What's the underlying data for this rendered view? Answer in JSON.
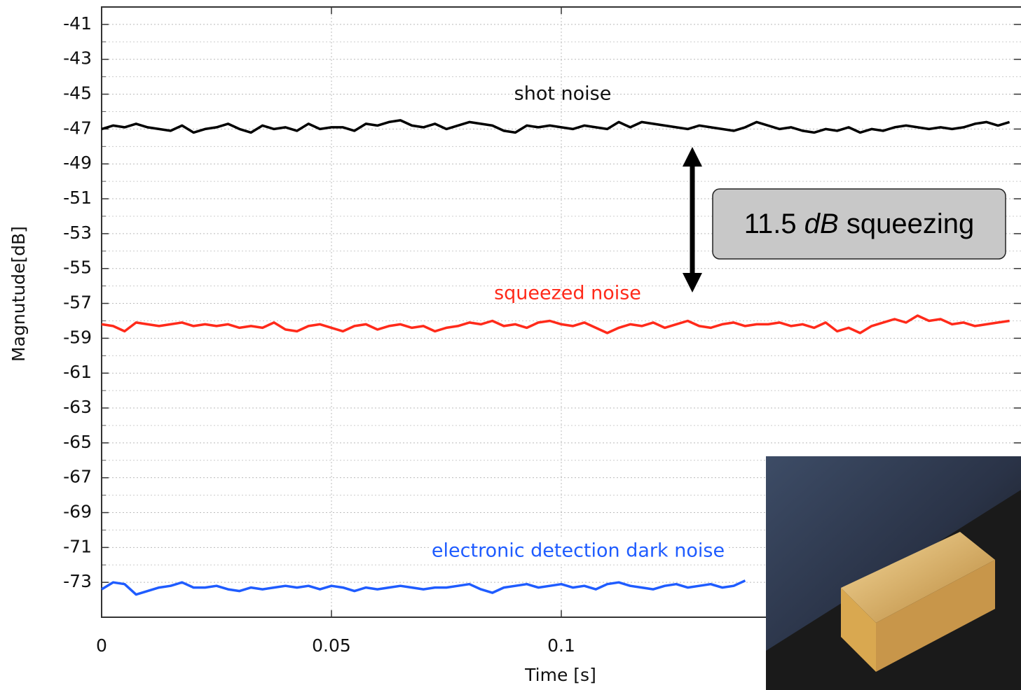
{
  "chart_data": {
    "type": "line",
    "x_label": "Time [s]",
    "y_label": "Magnutude[dB]",
    "x": [
      0,
      0.0025,
      0.005,
      0.0075,
      0.01,
      0.0125,
      0.015,
      0.0175,
      0.02,
      0.0225,
      0.025,
      0.0275,
      0.03,
      0.0325,
      0.035,
      0.0375,
      0.04,
      0.0425,
      0.045,
      0.0475,
      0.05,
      0.0525,
      0.055,
      0.0575,
      0.06,
      0.0625,
      0.065,
      0.0675,
      0.07,
      0.0725,
      0.075,
      0.0775,
      0.08,
      0.0825,
      0.085,
      0.0875,
      0.09,
      0.0925,
      0.095,
      0.0975,
      0.1,
      0.1025,
      0.105,
      0.1075,
      0.11,
      0.1125,
      0.115,
      0.1175,
      0.12,
      0.1225,
      0.125,
      0.1275,
      0.13,
      0.1325,
      0.135,
      0.1375,
      0.14,
      0.1425,
      0.145,
      0.1475,
      0.15,
      0.1525,
      0.155,
      0.1575,
      0.16,
      0.1625,
      0.165,
      0.1675,
      0.17,
      0.1725,
      0.175,
      0.1775,
      0.18,
      0.1825,
      0.185,
      0.1875,
      0.19,
      0.1925,
      0.195,
      0.1975
    ],
    "series": [
      {
        "name": "shot noise",
        "color": "#000000",
        "values": [
          -47,
          -46.8,
          -46.9,
          -46.7,
          -46.9,
          -47,
          -47.1,
          -46.8,
          -47.2,
          -47,
          -46.9,
          -46.7,
          -47,
          -47.2,
          -46.8,
          -47,
          -46.9,
          -47.1,
          -46.7,
          -47,
          -46.9,
          -46.9,
          -47.1,
          -46.7,
          -46.8,
          -46.6,
          -46.5,
          -46.8,
          -46.9,
          -46.7,
          -47,
          -46.8,
          -46.6,
          -46.7,
          -46.8,
          -47.1,
          -47.2,
          -46.8,
          -46.9,
          -46.8,
          -46.9,
          -47,
          -46.8,
          -46.9,
          -47,
          -46.6,
          -46.9,
          -46.6,
          -46.7,
          -46.8,
          -46.9,
          -47,
          -46.8,
          -46.9,
          -47,
          -47.1,
          -46.9,
          -46.6,
          -46.8,
          -47,
          -46.9,
          -47.1,
          -47.2,
          -47,
          -47.1,
          -46.9,
          -47.2,
          -47,
          -47.1,
          -46.9,
          -46.8,
          -46.9,
          -47,
          -46.9,
          -47,
          -46.9,
          -46.7,
          -46.6,
          -46.8,
          -46.6
        ]
      },
      {
        "name": "squeezed noise",
        "color": "#ff2a1a",
        "values": [
          -58.2,
          -58.3,
          -58.6,
          -58.1,
          -58.2,
          -58.3,
          -58.2,
          -58.1,
          -58.3,
          -58.2,
          -58.3,
          -58.2,
          -58.4,
          -58.3,
          -58.4,
          -58.1,
          -58.5,
          -58.6,
          -58.3,
          -58.2,
          -58.4,
          -58.6,
          -58.3,
          -58.2,
          -58.5,
          -58.3,
          -58.2,
          -58.4,
          -58.3,
          -58.6,
          -58.4,
          -58.3,
          -58.1,
          -58.2,
          -58,
          -58.3,
          -58.2,
          -58.4,
          -58.1,
          -58,
          -58.2,
          -58.3,
          -58.1,
          -58.4,
          -58.7,
          -58.4,
          -58.2,
          -58.3,
          -58.1,
          -58.4,
          -58.2,
          -58,
          -58.3,
          -58.4,
          -58.2,
          -58.1,
          -58.3,
          -58.2,
          -58.2,
          -58.1,
          -58.3,
          -58.2,
          -58.4,
          -58.1,
          -58.6,
          -58.4,
          -58.7,
          -58.3,
          -58.1,
          -57.9,
          -58.1,
          -57.7,
          -58,
          -57.9,
          -58.2,
          -58.1,
          -58.3,
          -58.2,
          -58.1,
          -58
        ]
      },
      {
        "name": "electronic detection dark noise",
        "color": "#1f5cff",
        "values": [
          -73.4,
          -73,
          -73.1,
          -73.7,
          -73.5,
          -73.3,
          -73.2,
          -73,
          -73.3,
          -73.3,
          -73.2,
          -73.4,
          -73.5,
          -73.3,
          -73.4,
          -73.3,
          -73.2,
          -73.3,
          -73.2,
          -73.4,
          -73.2,
          -73.3,
          -73.5,
          -73.3,
          -73.4,
          -73.3,
          -73.2,
          -73.3,
          -73.4,
          -73.3,
          -73.3,
          -73.2,
          -73.1,
          -73.4,
          -73.6,
          -73.3,
          -73.2,
          -73.1,
          -73.3,
          -73.2,
          -73.1,
          -73.3,
          -73.2,
          -73.4,
          -73.1,
          -73,
          -73.2,
          -73.3,
          -73.4,
          -73.2,
          -73.1,
          -73.3,
          -73.2,
          -73.1,
          -73.3,
          -73.2,
          -72.9,
          null,
          null,
          null,
          null,
          null,
          null,
          null,
          null,
          null,
          null,
          null,
          null,
          null,
          null,
          null,
          null,
          null,
          null,
          null,
          null,
          null,
          null,
          null
        ]
      }
    ],
    "xlim": [
      0,
      0.2
    ],
    "ylim": [
      -75,
      -40
    ],
    "xticks": [
      0,
      0.05,
      0.1
    ],
    "yticks": [
      -41,
      -43,
      -45,
      -47,
      -49,
      -51,
      -53,
      -55,
      -57,
      -59,
      -61,
      -63,
      -65,
      -67,
      -69,
      -71,
      -73
    ],
    "grid": true,
    "annotation": {
      "value": "11.5",
      "unit": "dB",
      "text": "squeezing"
    }
  }
}
